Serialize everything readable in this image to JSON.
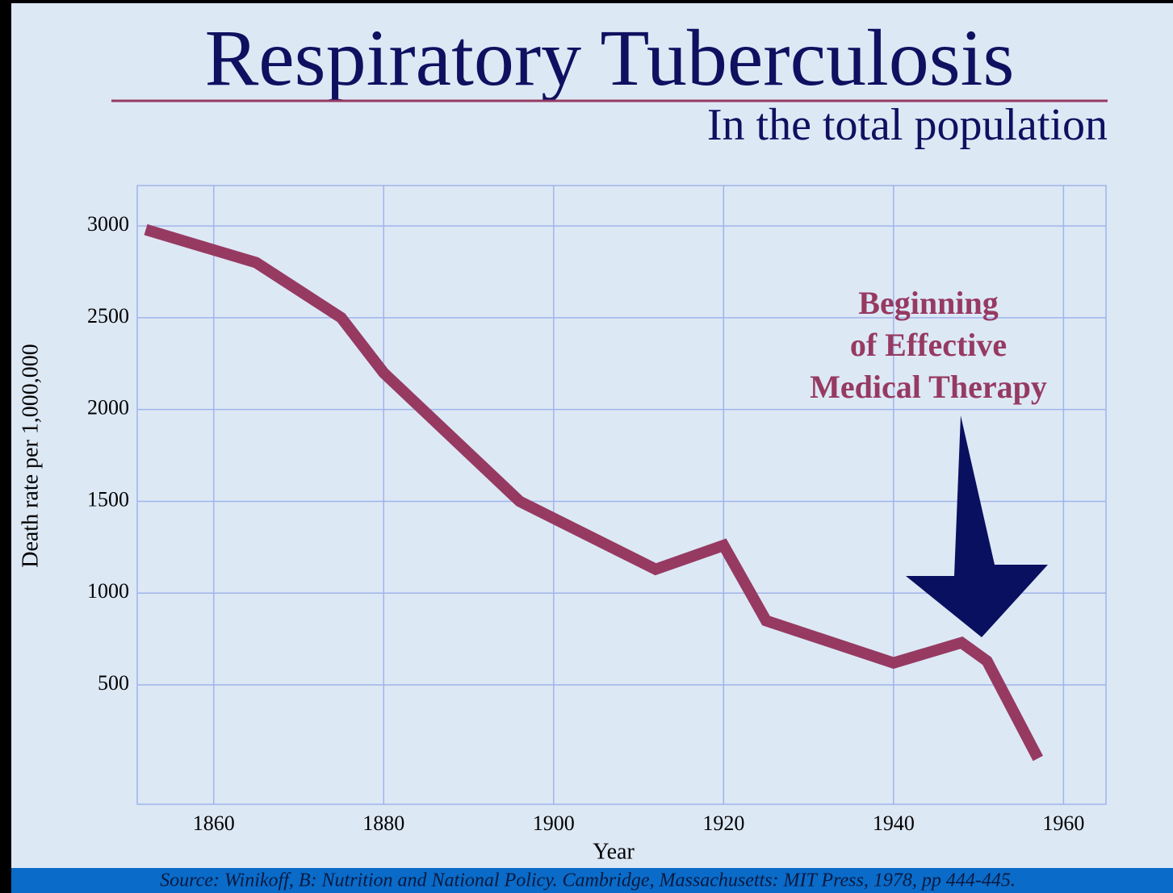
{
  "chart_data": {
    "type": "line",
    "title": "Respiratory Tuberculosis",
    "subtitle": "In the total population",
    "y_label": "Death rate per 1,000,000",
    "x_label": "Year",
    "annotation": "Beginning of Effective Medical Therapy",
    "source": "Source: Winikoff, B: Nutrition and National Policy. Cambridge, Massachusetts: MIT Press, 1978, pp 444-445.",
    "x": [
      1852,
      1865,
      1875,
      1880,
      1896,
      1912,
      1920,
      1925,
      1940,
      1948,
      1951,
      1957
    ],
    "series": [
      {
        "name": "Death rate",
        "color": "#963a62",
        "values": [
          2980,
          2800,
          2500,
          2200,
          1500,
          1130,
          1260,
          850,
          620,
          730,
          630,
          100
        ]
      }
    ],
    "xlim": [
      1851,
      1965
    ],
    "ylim": [
      -150,
      3220
    ],
    "xticks": [
      1860,
      1880,
      1900,
      1920,
      1940,
      1960
    ],
    "yticks": [
      500,
      1000,
      1500,
      2000,
      2500,
      3000
    ],
    "grid": true
  }
}
